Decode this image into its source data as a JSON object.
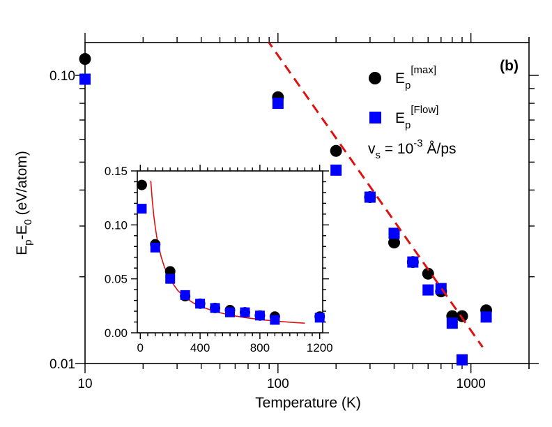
{
  "chart_data": [
    {
      "type": "scatter",
      "panel_label": "(b)",
      "xlabel": "Temperature (K)",
      "ylabel": {
        "base": "E",
        "sub1": "p",
        "mid": "-E",
        "sub2": "0",
        "rest": " (eV/atom)"
      },
      "xscale": "log",
      "yscale": "log",
      "xlim": [
        10,
        2000
      ],
      "ylim": [
        0.01,
        0.13
      ],
      "xtick_labels": [
        {
          "value": 10,
          "label": "10"
        },
        {
          "value": 100,
          "label": "100"
        },
        {
          "value": 1000,
          "label": "1000"
        }
      ],
      "ytick_labels": [
        {
          "value": 0.1,
          "label": "0.10"
        },
        {
          "value": 0.01,
          "label": "0.01"
        }
      ],
      "series": [
        {
          "name": {
            "base": "E",
            "sub": "p",
            "sup": "[max]"
          },
          "marker": "circle",
          "color": "#000000",
          "x": [
            10,
            100,
            200,
            300,
            400,
            500,
            600,
            700,
            800,
            900,
            1200
          ],
          "y": [
            0.114,
            0.084,
            0.0547,
            0.0378,
            0.0263,
            0.0225,
            0.0205,
            0.0178,
            0.0146,
            0.0146,
            0.0153
          ]
        },
        {
          "name": {
            "base": "E",
            "sub": "p",
            "sup": "[Flow]"
          },
          "marker": "square",
          "color": "#0000ff",
          "x": [
            10,
            100,
            200,
            300,
            400,
            500,
            600,
            700,
            800,
            900,
            1200
          ],
          "y": [
            0.097,
            0.08,
            0.0469,
            0.0378,
            0.0283,
            0.0225,
            0.018,
            0.0182,
            0.0138,
            0.0103,
            0.0145
          ]
        },
        {
          "type": "line",
          "style": "dashed",
          "color": "#dd1111",
          "x": [
            70,
            1150
          ],
          "y": [
            0.165,
            0.0114
          ]
        }
      ],
      "annotation": {
        "base": "v",
        "sub": "s",
        "mid": " = 10",
        "sup": "-3",
        "rest": " Å/ps"
      },
      "legend_position": "top-right",
      "grid": false
    },
    {
      "type": "scatter",
      "role": "inset",
      "xlim": [
        -20,
        1220
      ],
      "ylim": [
        0,
        0.15
      ],
      "xtick_labels": [
        "0",
        "400",
        "800",
        "1200"
      ],
      "xticks": [
        0,
        400,
        800,
        1200
      ],
      "ytick_labels": [
        "0.00",
        "0.05",
        "0.10",
        "0.15"
      ],
      "yticks": [
        0,
        0.05,
        0.1,
        0.15
      ],
      "series": [
        {
          "marker": "circle",
          "color": "#000000",
          "x": [
            10,
            100,
            200,
            300,
            400,
            500,
            600,
            700,
            800,
            900,
            1200
          ],
          "y": [
            0.137,
            0.082,
            0.057,
            0.034,
            0.027,
            0.023,
            0.021,
            0.019,
            0.016,
            0.015,
            0.015
          ]
        },
        {
          "marker": "square",
          "color": "#0000ff",
          "x": [
            10,
            100,
            200,
            300,
            400,
            500,
            600,
            700,
            800,
            900,
            1200
          ],
          "y": [
            0.115,
            0.079,
            0.05,
            0.035,
            0.027,
            0.023,
            0.019,
            0.019,
            0.016,
            0.012,
            0.014
          ]
        },
        {
          "type": "line",
          "color": "#dd1111",
          "x": [
            70,
            80,
            90,
            100,
            110,
            120,
            140,
            160,
            180,
            200,
            250,
            300,
            350,
            400,
            500,
            600,
            700,
            800,
            900,
            1000,
            1100
          ],
          "y": [
            0.141,
            0.123,
            0.109,
            0.098,
            0.089,
            0.082,
            0.0703,
            0.0615,
            0.0547,
            0.0492,
            0.0393,
            0.0328,
            0.0281,
            0.0246,
            0.0197,
            0.0164,
            0.0141,
            0.0123,
            0.0109,
            0.0098,
            0.0089
          ]
        }
      ]
    }
  ]
}
